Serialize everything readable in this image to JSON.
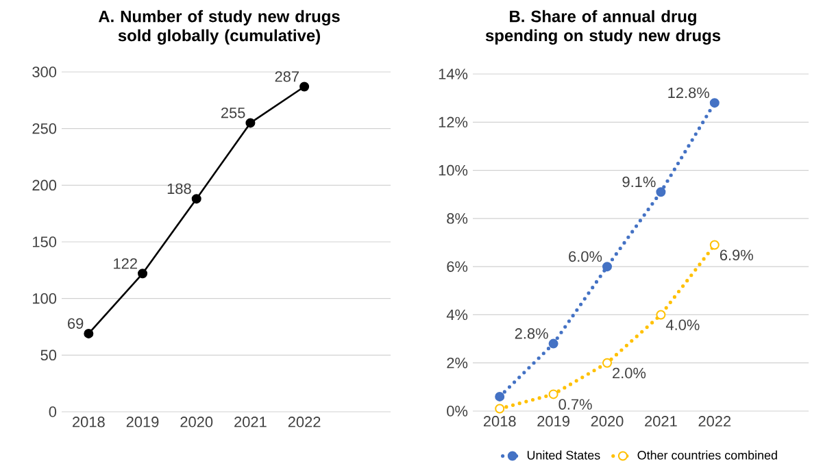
{
  "chart_data": [
    {
      "type": "line",
      "title": "A. Number of study new drugs sold globally (cumulative)",
      "categories": [
        "2018",
        "2019",
        "2020",
        "2021",
        "2022"
      ],
      "series": [
        {
          "color": "#000000",
          "values": [
            69,
            122,
            188,
            255,
            287
          ]
        }
      ],
      "ylim": [
        0,
        300
      ],
      "yticks": [
        0,
        50,
        100,
        150,
        200,
        250,
        300
      ],
      "grid": "y",
      "data_labels": true,
      "marker": "circle",
      "line_style": "solid"
    },
    {
      "type": "line",
      "title": "B. Share of annual drug spending on study new drugs",
      "categories": [
        "2018",
        "2019",
        "2020",
        "2021",
        "2022"
      ],
      "series": [
        {
          "name": "United States",
          "color": "#4472c4",
          "values": [
            0.6,
            2.8,
            6.0,
            9.1,
            12.8
          ],
          "value_labels": [
            null,
            "2.8%",
            "6.0%",
            "9.1%",
            "12.8%"
          ]
        },
        {
          "name": "Other countries combined",
          "color": "#ffc000",
          "values": [
            0.1,
            0.7,
            2.0,
            4.0,
            6.9
          ],
          "value_labels": [
            null,
            "0.7%",
            "2.0%",
            "4.0%",
            "6.9%"
          ]
        }
      ],
      "ylim": [
        0,
        14
      ],
      "yticks": [
        {
          "value": 0,
          "label": "0%"
        },
        {
          "value": 2,
          "label": "2%"
        },
        {
          "value": 4,
          "label": "4%"
        },
        {
          "value": 6,
          "label": "6%"
        },
        {
          "value": 8,
          "label": "8%"
        },
        {
          "value": 10,
          "label": "10%"
        },
        {
          "value": 12,
          "label": "12%"
        },
        {
          "value": 14,
          "label": "14%"
        }
      ],
      "grid": "y",
      "legend": "bottom",
      "marker": "circle",
      "line_style": "dotted"
    }
  ]
}
